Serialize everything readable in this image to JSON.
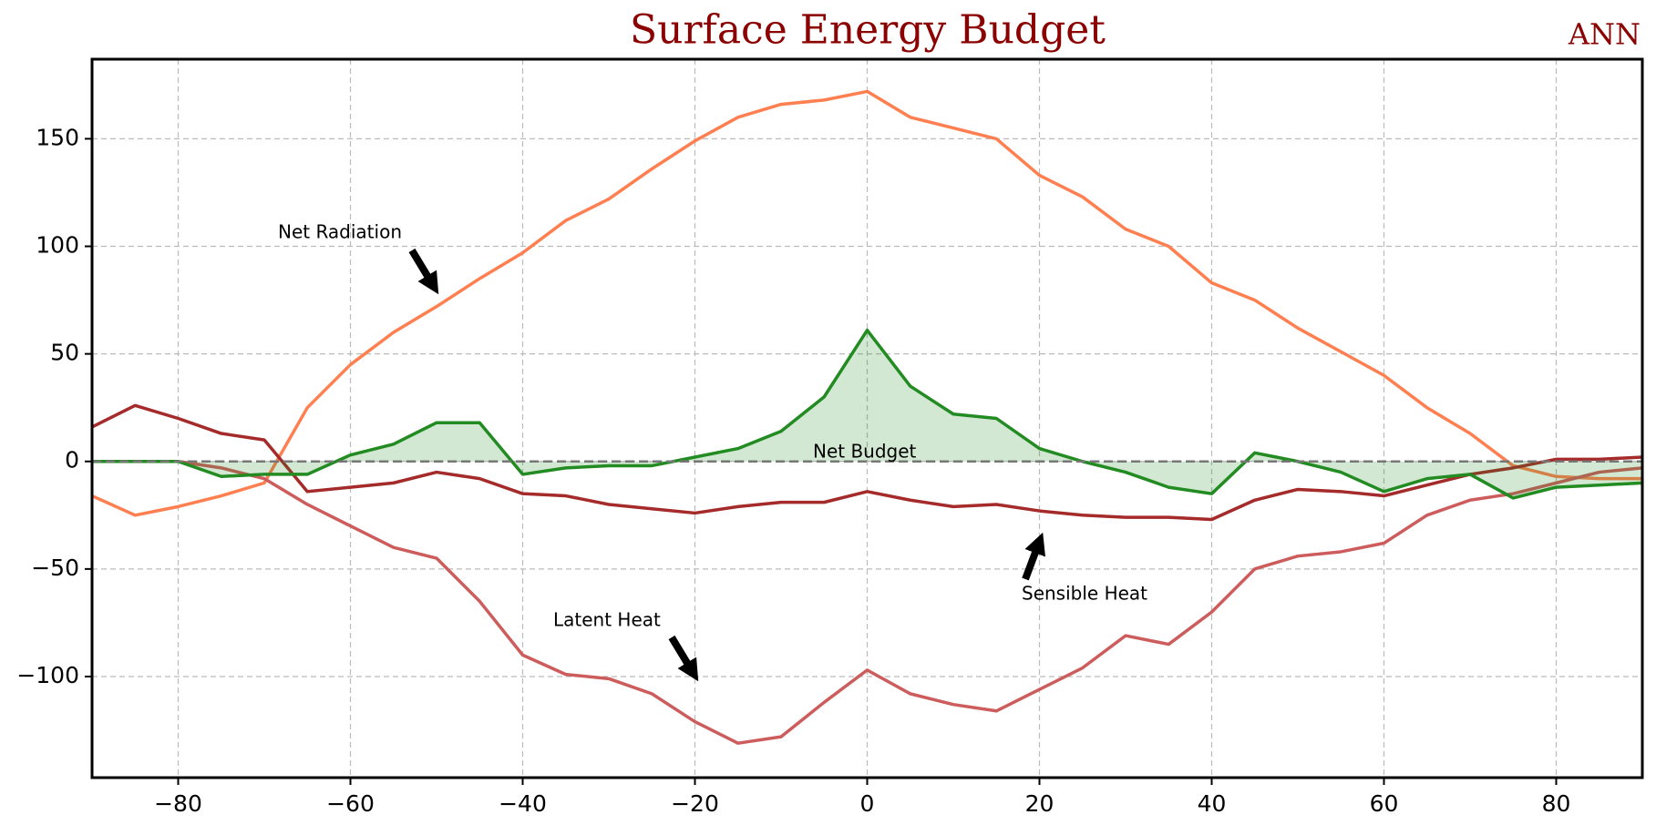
{
  "chart_data": {
    "type": "line",
    "title": "Surface Energy Budget",
    "corner_label": "ANN",
    "x": [
      -90,
      -85,
      -80,
      -75,
      -70,
      -65,
      -60,
      -55,
      -50,
      -45,
      -40,
      -35,
      -30,
      -25,
      -20,
      -15,
      -10,
      -5,
      0,
      5,
      10,
      15,
      20,
      25,
      30,
      35,
      40,
      45,
      50,
      55,
      60,
      65,
      70,
      75,
      80,
      85,
      90
    ],
    "series": [
      {
        "name": "Net Radiation",
        "color": "#ff7f50",
        "values": [
          -16,
          -25,
          -21,
          -16,
          -10,
          25,
          45,
          60,
          72,
          85,
          97,
          112,
          122,
          136,
          149,
          160,
          166,
          168,
          172,
          160,
          155,
          150,
          133,
          123,
          108,
          100,
          83,
          75,
          62,
          51,
          40,
          25,
          13,
          -2,
          -7,
          -8,
          -8
        ]
      },
      {
        "name": "Latent Heat",
        "color": "#cd5c5c",
        "values": [
          0,
          0,
          0,
          -3,
          -8,
          -20,
          -30,
          -40,
          -45,
          -65,
          -90,
          -99,
          -101,
          -108,
          -121,
          -131,
          -128,
          -112,
          -97,
          -108,
          -113,
          -116,
          -106,
          -96,
          -81,
          -85,
          -70,
          -50,
          -44,
          -42,
          -38,
          -25,
          -18,
          -15,
          -10,
          -5,
          -3
        ]
      },
      {
        "name": "Sensible Heat",
        "color": "#a52a2a",
        "values": [
          16,
          26,
          20,
          13,
          10,
          -14,
          -12,
          -10,
          -5,
          -8,
          -15,
          -16,
          -20,
          -22,
          -24,
          -21,
          -19,
          -19,
          -14,
          -18,
          -21,
          -20,
          -23,
          -25,
          -26,
          -26,
          -27,
          -18,
          -13,
          -14,
          -16,
          -11,
          -6,
          -3,
          1,
          1,
          2
        ]
      },
      {
        "name": "Net Budget",
        "color": "#228b22",
        "fill": "#228b22",
        "values": [
          0,
          0,
          0,
          -7,
          -6,
          -6,
          3,
          8,
          18,
          18,
          -6,
          -3,
          -2,
          -2,
          2,
          6,
          14,
          30,
          61,
          35,
          22,
          20,
          6,
          0,
          -5,
          -12,
          -15,
          4,
          0,
          -5,
          -14,
          -8,
          -6,
          -17,
          -12,
          -11,
          -10
        ]
      }
    ],
    "xlim": [
      -90,
      90
    ],
    "xticks": [
      {
        "value": -80,
        "label": "−80"
      },
      {
        "value": -60,
        "label": "−60"
      },
      {
        "value": -40,
        "label": "−40"
      },
      {
        "value": -20,
        "label": "−20"
      },
      0,
      20,
      40,
      60,
      80
    ],
    "ylim": [
      -147,
      187
    ],
    "yticks": [
      {
        "value": -100,
        "label": "−100"
      },
      {
        "value": -50,
        "label": "−50"
      },
      0,
      50,
      100,
      150
    ],
    "grid": true,
    "annotations": [
      "Net Radiation",
      "Latent Heat",
      "Sensible Heat",
      "Net Budget"
    ]
  }
}
